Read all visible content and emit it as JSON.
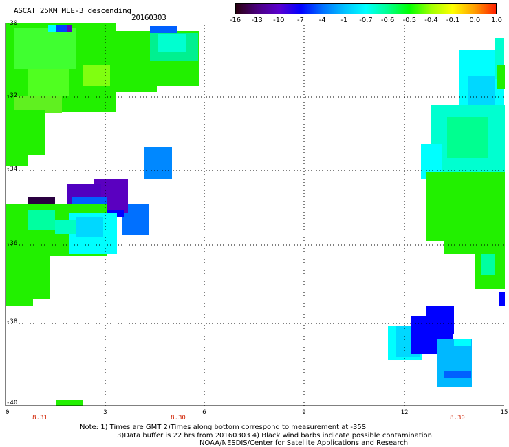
{
  "header": {
    "title": "ASCAT 25KM MLE-3 descending",
    "date": "20160303"
  },
  "colorbar": {
    "labels": [
      "-16",
      "-13",
      "-10",
      "-7",
      "-4",
      "-1",
      "-0.7",
      "-0.6",
      "-0.5",
      "-0.4",
      "-0.1",
      "0.0",
      "1.0"
    ],
    "gradient": [
      "#2a0010",
      "#4a0080",
      "#5a00d0",
      "#0000ff",
      "#0070ff",
      "#00c0ff",
      "#00ffff",
      "#00ff90",
      "#00ff00",
      "#a0ff00",
      "#ffff00",
      "#ffa000",
      "#ff2000"
    ]
  },
  "map": {
    "lat_labels": [
      "-30",
      "-32",
      "-34",
      "-36",
      "-38",
      "-40"
    ],
    "lon_labels": [
      "0",
      "3",
      "6",
      "9",
      "12",
      "15"
    ],
    "time_labels": [
      "8.31",
      "8.30",
      "8.30"
    ],
    "time_color": "#d02000",
    "grid": true
  },
  "notes": {
    "line1": "Note: 1) Times are GMT 2)Times along bottom correspond to measurement at -35S",
    "line2": "3)Data buffer is 22 hrs from 20160303 4) Black wind barbs indicate possible contamination",
    "line3": "NOAA/NESDIS/Center for Satellite Applications and Research"
  }
}
